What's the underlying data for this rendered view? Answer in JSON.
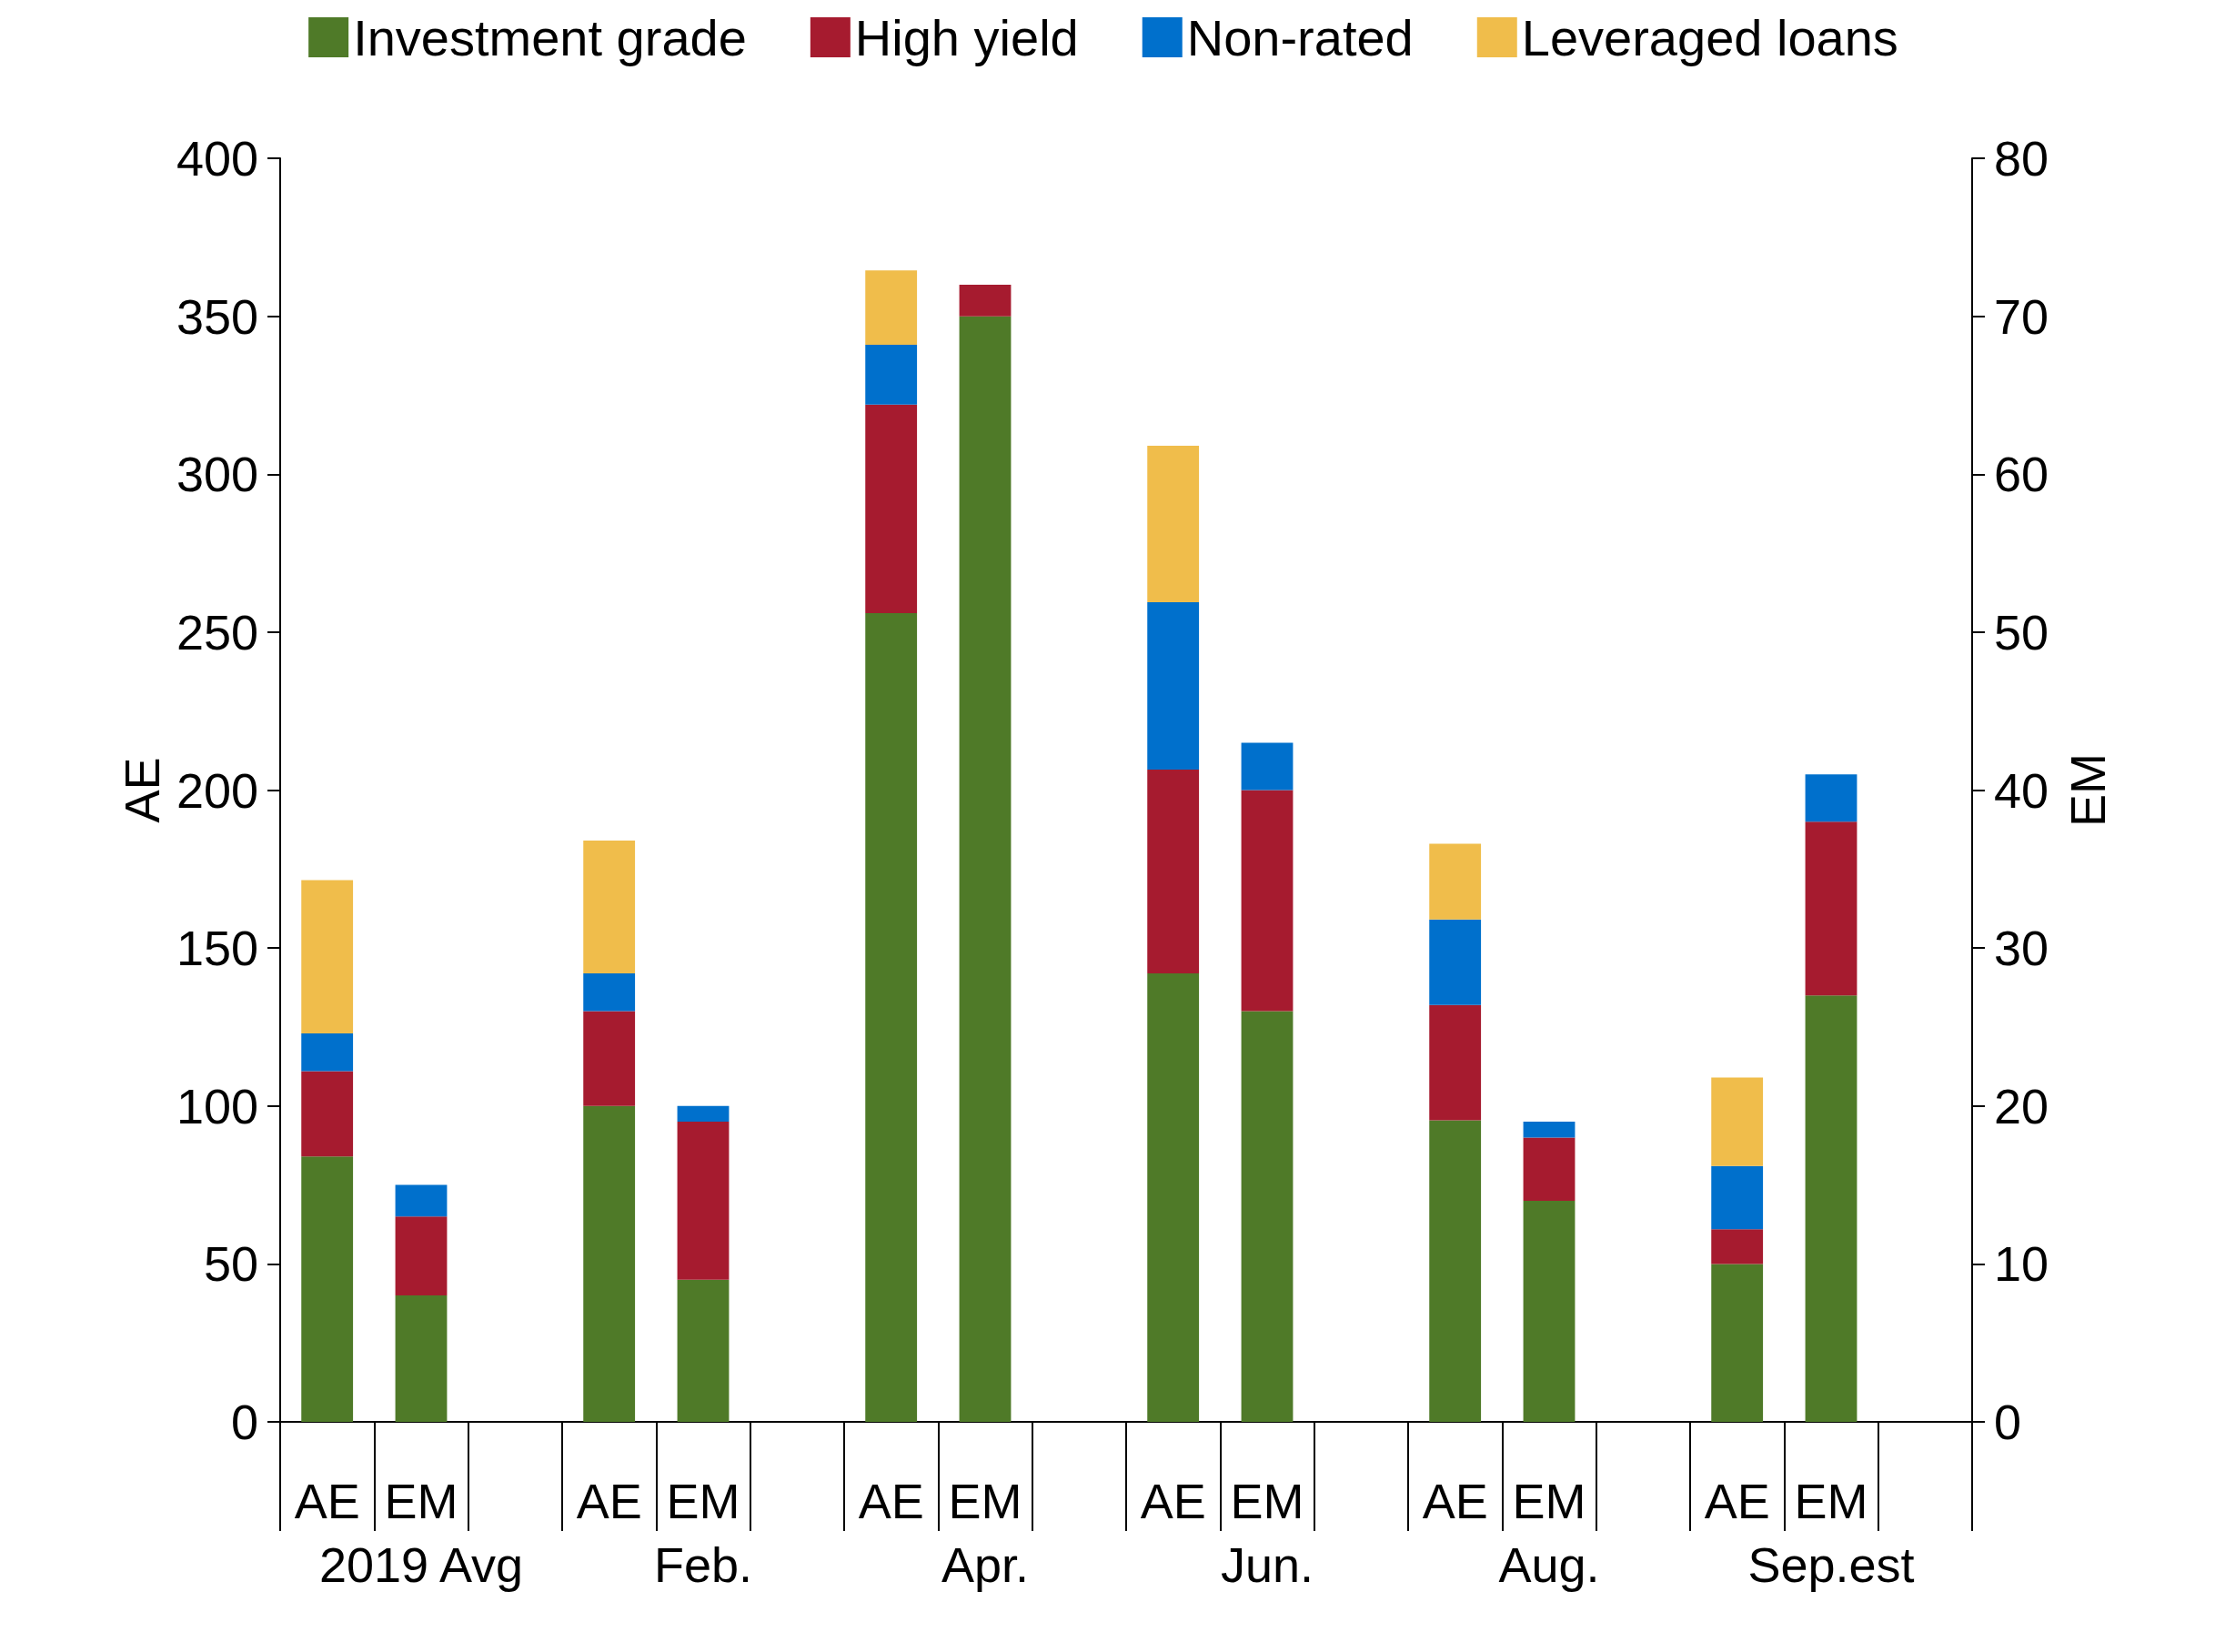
{
  "chart_data": {
    "type": "bar",
    "stacked": true,
    "ylabel": "AE",
    "y2label": "EM",
    "legend": "top",
    "grid": false,
    "categories": [
      "AE",
      "EM",
      null,
      "AE",
      "EM",
      null,
      "AE",
      "EM",
      null,
      "AE",
      "EM",
      null,
      "AE",
      "EM",
      null,
      "AE",
      "EM",
      null
    ],
    "annotations": [
      "2019 Avg",
      "Feb.",
      "Apr.",
      "Jun.",
      "Aug.",
      "Sep.est"
    ],
    "ylim": [
      0,
      400
    ],
    "yticks": [
      0,
      50,
      100,
      150,
      200,
      250,
      300,
      350,
      400
    ],
    "y2lim": [
      0,
      80
    ],
    "y2ticks": [
      0,
      10,
      20,
      30,
      40,
      50,
      60,
      70,
      80
    ],
    "series": [
      {
        "name": "Investment grade",
        "color": "#4f7a28",
        "values": [
          84,
          null,
          null,
          100,
          null,
          null,
          256,
          null,
          null,
          142,
          null,
          null,
          95.5,
          null,
          null,
          50,
          null,
          null
        ]
      },
      {
        "name": "High yield",
        "color": "#a61b2f",
        "values": [
          27,
          null,
          null,
          30,
          null,
          null,
          66,
          null,
          null,
          64.5,
          null,
          null,
          36.5,
          null,
          null,
          11,
          null,
          null
        ]
      },
      {
        "name": "Non-rated",
        "color": "#0070cc",
        "values": [
          12,
          null,
          null,
          12,
          null,
          null,
          19,
          null,
          null,
          53,
          null,
          null,
          27,
          null,
          null,
          20,
          null,
          null
        ]
      },
      {
        "name": "Leveraged loans",
        "color": "#f0bd4b",
        "values": [
          48.5,
          null,
          null,
          42,
          null,
          null,
          23.5,
          null,
          null,
          49.5,
          null,
          null,
          24,
          null,
          null,
          28,
          null,
          null
        ]
      },
      {
        "color": "#4f7a28",
        "axis": "y2",
        "values": [
          null,
          8,
          null,
          null,
          9,
          null,
          null,
          70,
          null,
          null,
          26,
          null,
          null,
          14,
          null,
          null,
          27,
          null
        ]
      },
      {
        "color": "#a61b2f",
        "axis": "y2",
        "values": [
          null,
          5,
          null,
          null,
          10,
          null,
          null,
          2,
          null,
          null,
          14,
          null,
          null,
          4,
          null,
          null,
          11,
          null
        ]
      },
      {
        "color": "#0070cc",
        "axis": "y2",
        "values": [
          null,
          2,
          null,
          null,
          1,
          null,
          null,
          null,
          null,
          null,
          3,
          null,
          null,
          1,
          null,
          null,
          3,
          null
        ]
      }
    ]
  }
}
